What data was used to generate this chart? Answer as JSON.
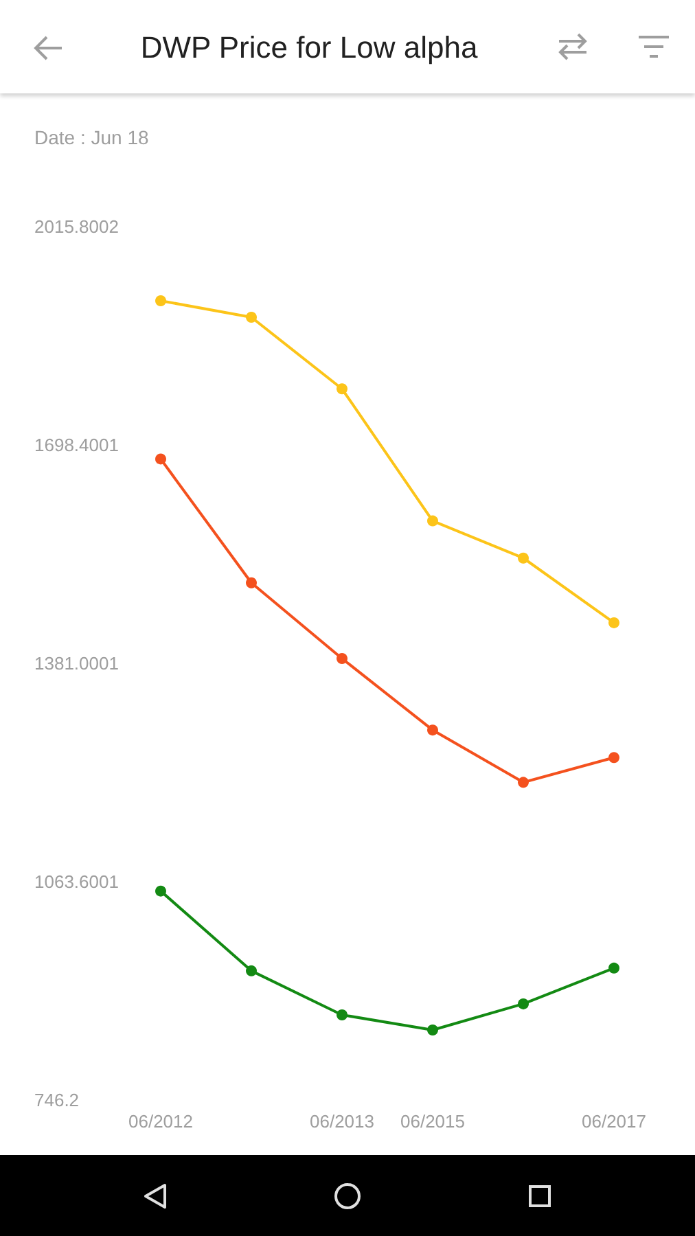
{
  "chart_data": {
    "type": "line",
    "title": "DWP Price for Low alpha",
    "subtitle": "Date : Jun 18",
    "categories": [
      "06/2012",
      null,
      "06/2013",
      "06/2015",
      null,
      "06/2017"
    ],
    "series": [
      {
        "color": "#fcc419",
        "values": [
          1908,
          1884,
          1780,
          1588,
          1534,
          1440
        ]
      },
      {
        "color": "#f4511e",
        "values": [
          1678,
          1498,
          1388,
          1284,
          1208,
          1244
        ]
      },
      {
        "color": "#138a13",
        "values": [
          1050,
          934,
          870,
          848,
          886,
          938
        ]
      }
    ],
    "ylim": [
      746.2,
      2015.8002
    ],
    "yticks": [
      746.2,
      1063.6001,
      1381.0001,
      1698.4001,
      2015.8002
    ],
    "grid": false,
    "marker": "circle",
    "line_style": "solid"
  }
}
